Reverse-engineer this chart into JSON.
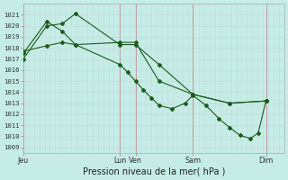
{
  "xlabel": "Pression niveau de la mer( hPa )",
  "bg_color": "#c5ece6",
  "grid_color_minor": "#c5dbd8",
  "grid_color_major": "#c0a0a0",
  "line_color": "#1a5c1a",
  "ylim": [
    1008.5,
    1022.0
  ],
  "yticks": [
    1009,
    1010,
    1011,
    1012,
    1013,
    1014,
    1015,
    1016,
    1017,
    1018,
    1019,
    1020,
    1021
  ],
  "xlim": [
    0,
    100
  ],
  "day_labels": [
    "Jeu",
    "Lun",
    "Ven",
    "Sam",
    "Dim"
  ],
  "day_x": [
    0,
    37,
    43,
    65,
    93
  ],
  "vline_x": [
    0,
    37,
    43,
    65,
    93
  ],
  "line1": {
    "x": [
      0,
      9,
      15,
      20,
      37,
      43,
      52,
      65,
      79,
      93
    ],
    "y": [
      1017.0,
      1020.0,
      1020.2,
      1021.1,
      1018.3,
      1018.3,
      1016.5,
      1013.8,
      1013.0,
      1013.2
    ]
  },
  "line2": {
    "x": [
      0,
      9,
      15,
      20,
      37,
      43,
      52,
      65,
      79,
      93
    ],
    "y": [
      1017.5,
      1020.4,
      1019.5,
      1018.3,
      1018.5,
      1018.5,
      1015.0,
      1013.8,
      1013.0,
      1013.2
    ]
  },
  "line3": {
    "x": [
      0,
      9,
      15,
      20,
      37,
      40,
      43,
      46,
      49,
      52,
      57,
      62,
      65,
      70,
      75,
      79,
      83,
      87,
      90,
      93
    ],
    "y": [
      1017.7,
      1018.2,
      1018.5,
      1018.3,
      1016.5,
      1015.8,
      1015.0,
      1014.2,
      1013.5,
      1012.8,
      1012.5,
      1013.0,
      1013.7,
      1012.8,
      1011.6,
      1010.8,
      1010.1,
      1009.8,
      1010.3,
      1013.2
    ]
  },
  "figsize": [
    3.2,
    2.0
  ],
  "dpi": 100,
  "marker": "D",
  "marker_size": 2.0,
  "line_width": 0.8
}
